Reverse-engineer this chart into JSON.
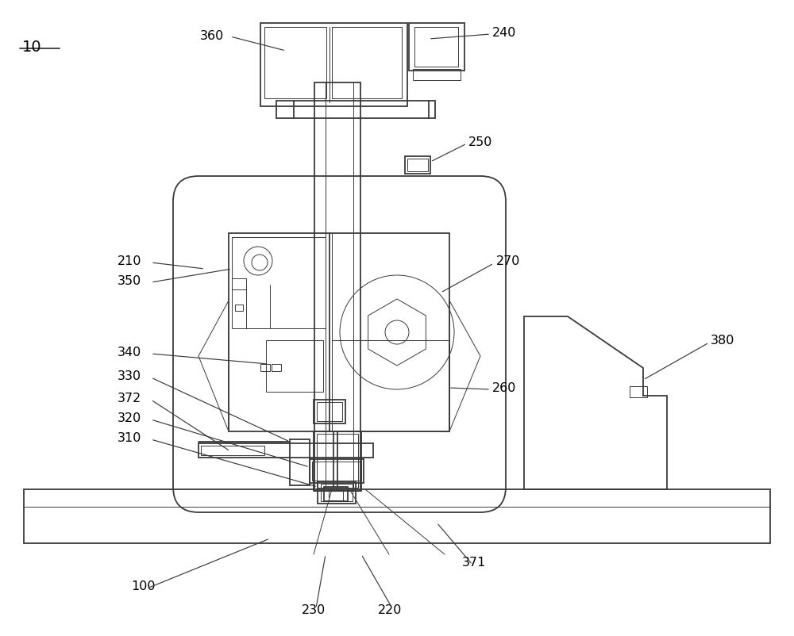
{
  "bg_color": "#ffffff",
  "line_color": "#3a3a3a",
  "lw_main": 1.3,
  "lw_thin": 0.7,
  "lw_ann": 0.85,
  "font_size": 11.5
}
